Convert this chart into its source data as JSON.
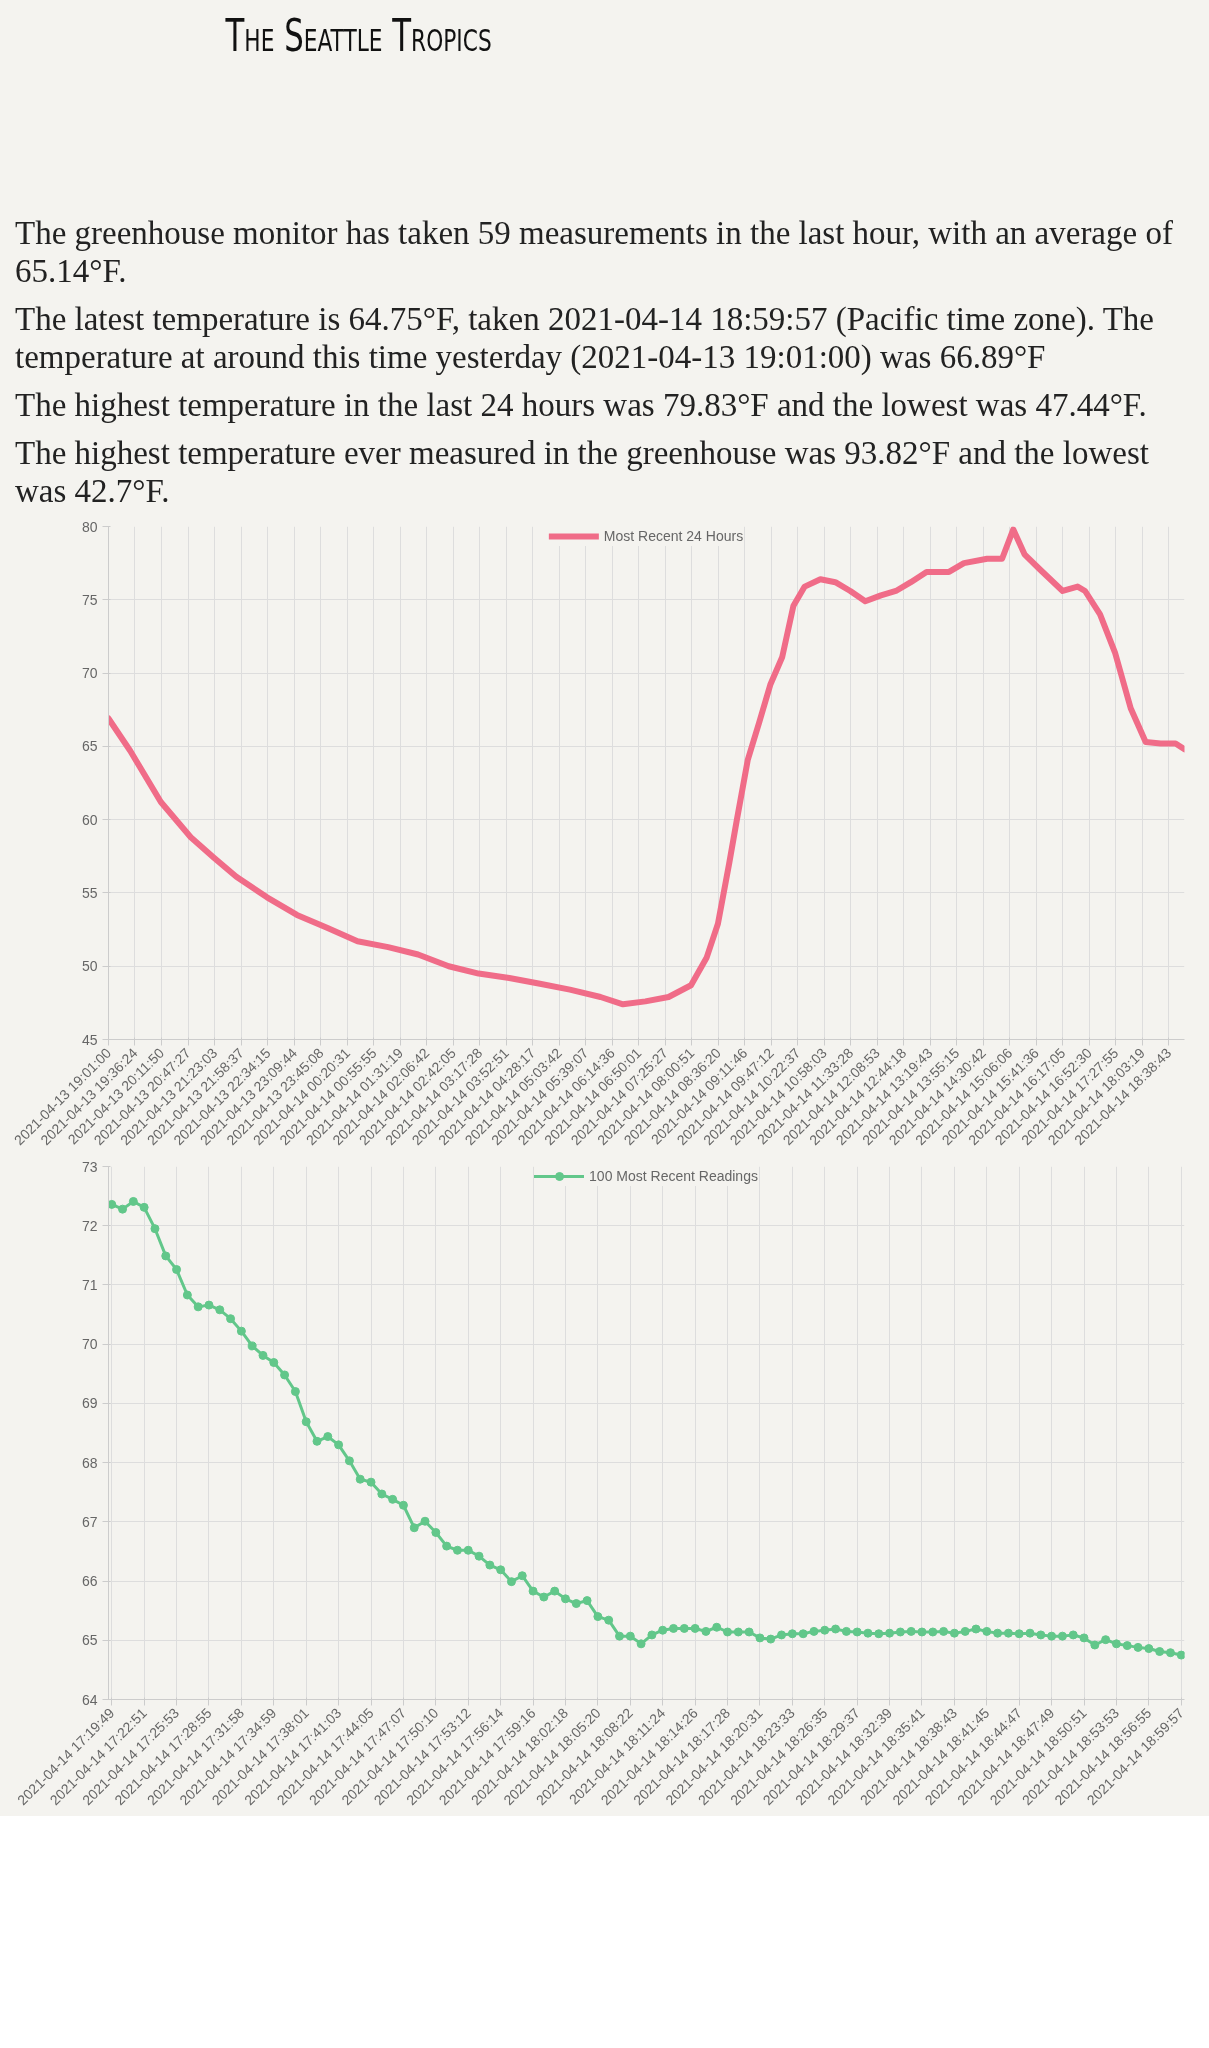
{
  "chart_data": [
    {
      "type": "line",
      "title": "The Seattle Tropics",
      "annotations": [
        "The greenhouse monitor has taken 59 measurements in the last hour, with an average of 65.14°F.",
        "The latest temperature is 64.75°F, taken 2021-04-14 18:59:57 (Pacific time zone). The temperature at around this time yesterday (2021-04-13 19:01:00) was 66.89°F",
        "The highest temperature in the last 24 hours was 79.83°F and the lowest was 47.44°F.",
        "The highest temperature ever measured in the greenhouse was 93.82°F and the lowest was 42.7°F."
      ],
      "x": [
        "2021-04-13T19:01",
        "2021-04-13T19:30",
        "2021-04-13T20:11",
        "2021-04-13T20:51",
        "2021-04-13T21:22",
        "2021-04-13T21:52",
        "2021-04-13T22:33",
        "2021-04-13T23:13",
        "2021-04-13T23:54",
        "2021-04-14T00:34",
        "2021-04-14T01:15",
        "2021-04-14T01:55",
        "2021-04-14T02:36",
        "2021-04-14T03:16",
        "2021-04-14T03:57",
        "2021-04-14T04:38",
        "2021-04-14T05:18",
        "2021-04-14T05:59",
        "2021-04-14T06:29",
        "2021-04-14T06:59",
        "2021-04-14T07:30",
        "2021-04-14T08:00",
        "2021-04-14T08:21",
        "2021-04-14T08:36",
        "2021-04-14T08:51",
        "2021-04-14T09:01",
        "2021-04-14T09:16",
        "2021-04-14T09:31",
        "2021-04-14T09:46",
        "2021-04-14T10:02",
        "2021-04-14T10:17",
        "2021-04-14T10:32",
        "2021-04-14T10:53",
        "2021-04-14T11:13",
        "2021-04-14T11:33",
        "2021-04-14T11:53",
        "2021-04-14T12:14",
        "2021-04-14T12:34",
        "2021-04-14T12:54",
        "2021-04-14T13:15",
        "2021-04-14T13:45",
        "2021-04-14T14:05",
        "2021-04-14T14:36",
        "2021-04-14T14:56",
        "2021-04-14T15:11",
        "2021-04-14T15:26",
        "2021-04-14T15:46",
        "2021-04-14T16:17",
        "2021-04-14T16:37",
        "2021-04-14T16:47",
        "2021-04-14T17:07",
        "2021-04-14T17:27",
        "2021-04-14T17:48",
        "2021-04-14T18:08",
        "2021-04-14T18:28",
        "2021-04-14T18:48",
        "2021-04-14T18:59:57"
      ],
      "series": [
        {
          "name": "Most Recent 24 Hours",
          "color": "#f06c88",
          "values": [
            66.9,
            64.7,
            61.2,
            58.8,
            57.4,
            56.1,
            54.7,
            53.5,
            52.6,
            51.7,
            51.3,
            50.8,
            50.0,
            49.5,
            49.2,
            48.8,
            48.4,
            47.9,
            47.4,
            47.6,
            47.9,
            48.7,
            50.6,
            52.9,
            57.0,
            59.9,
            64.1,
            66.6,
            69.2,
            71.1,
            74.6,
            75.9,
            76.4,
            76.2,
            75.6,
            74.9,
            75.3,
            75.6,
            76.2,
            76.9,
            76.9,
            77.5,
            77.8,
            77.8,
            79.8,
            78.1,
            77.1,
            75.6,
            75.9,
            75.6,
            74.0,
            71.4,
            67.6,
            65.3,
            65.2,
            65.2,
            64.8
          ]
        }
      ],
      "xlim": [
        "2021-04-13T19:01:00",
        "2021-04-14T18:59:57"
      ],
      "xticks": [
        {
          "value": "2021-04-13T19:01:00",
          "label": "2021-04-13 19:01:00"
        },
        {
          "value": "2021-04-13T19:36:24",
          "label": "2021-04-13 19:36:24"
        },
        {
          "value": "2021-04-13T20:11:50",
          "label": "2021-04-13 20:11:50"
        },
        {
          "value": "2021-04-13T20:47:27",
          "label": "2021-04-13 20:47:27"
        },
        {
          "value": "2021-04-13T21:23:03",
          "label": "2021-04-13 21:23:03"
        },
        {
          "value": "2021-04-13T21:58:37",
          "label": "2021-04-13 21:58:37"
        },
        {
          "value": "2021-04-13T22:34:15",
          "label": "2021-04-13 22:34:15"
        },
        {
          "value": "2021-04-13T23:09:44",
          "label": "2021-04-13 23:09:44"
        },
        {
          "value": "2021-04-13T23:45:08",
          "label": "2021-04-13 23:45:08"
        },
        {
          "value": "2021-04-14T00:20:31",
          "label": "2021-04-14 00:20:31"
        },
        {
          "value": "2021-04-14T00:55:55",
          "label": "2021-04-14 00:55:55"
        },
        {
          "value": "2021-04-14T01:31:19",
          "label": "2021-04-14 01:31:19"
        },
        {
          "value": "2021-04-14T02:06:42",
          "label": "2021-04-14 02:06:42"
        },
        {
          "value": "2021-04-14T02:42:05",
          "label": "2021-04-14 02:42:05"
        },
        {
          "value": "2021-04-14T03:17:28",
          "label": "2021-04-14 03:17:28"
        },
        {
          "value": "2021-04-14T03:52:51",
          "label": "2021-04-14 03:52:51"
        },
        {
          "value": "2021-04-14T04:28:17",
          "label": "2021-04-14 04:28:17"
        },
        {
          "value": "2021-04-14T05:03:42",
          "label": "2021-04-14 05:03:42"
        },
        {
          "value": "2021-04-14T05:39:07",
          "label": "2021-04-14 05:39:07"
        },
        {
          "value": "2021-04-14T06:14:36",
          "label": "2021-04-14 06:14:36"
        },
        {
          "value": "2021-04-14T06:50:01",
          "label": "2021-04-14 06:50:01"
        },
        {
          "value": "2021-04-14T07:25:27",
          "label": "2021-04-14 07:25:27"
        },
        {
          "value": "2021-04-14T08:00:51",
          "label": "2021-04-14 08:00:51"
        },
        {
          "value": "2021-04-14T08:36:20",
          "label": "2021-04-14 08:36:20"
        },
        {
          "value": "2021-04-14T09:11:46",
          "label": "2021-04-14 09:11:46"
        },
        {
          "value": "2021-04-14T09:47:12",
          "label": "2021-04-14 09:47:12"
        },
        {
          "value": "2021-04-14T10:22:37",
          "label": "2021-04-14 10:22:37"
        },
        {
          "value": "2021-04-14T10:58:03",
          "label": "2021-04-14 10:58:03"
        },
        {
          "value": "2021-04-14T11:33:28",
          "label": "2021-04-14 11:33:28"
        },
        {
          "value": "2021-04-14T12:08:53",
          "label": "2021-04-14 12:08:53"
        },
        {
          "value": "2021-04-14T12:44:18",
          "label": "2021-04-14 12:44:18"
        },
        {
          "value": "2021-04-14T13:19:43",
          "label": "2021-04-14 13:19:43"
        },
        {
          "value": "2021-04-14T13:55:15",
          "label": "2021-04-14 13:55:15"
        },
        {
          "value": "2021-04-14T14:30:42",
          "label": "2021-04-14 14:30:42"
        },
        {
          "value": "2021-04-14T15:06:06",
          "label": "2021-04-14 15:06:06"
        },
        {
          "value": "2021-04-14T15:41:36",
          "label": "2021-04-14 15:41:36"
        },
        {
          "value": "2021-04-14T16:17:05",
          "label": "2021-04-14 16:17:05"
        },
        {
          "value": "2021-04-14T16:52:30",
          "label": "2021-04-14 16:52:30"
        },
        {
          "value": "2021-04-14T17:27:55",
          "label": "2021-04-14 17:27:55"
        },
        {
          "value": "2021-04-14T18:03:19",
          "label": "2021-04-14 18:03:19"
        },
        {
          "value": "2021-04-14T18:38:43",
          "label": "2021-04-14 18:38:43"
        }
      ],
      "ylim": [
        45,
        80
      ],
      "yticks": [
        45,
        50,
        55,
        60,
        65,
        70,
        75,
        80
      ],
      "grid": true,
      "legend": "top"
    },
    {
      "type": "line",
      "categories": [
        "2021-04-14 17:19:49",
        null,
        null,
        "2021-04-14 17:22:51",
        null,
        null,
        "2021-04-14 17:25:53",
        null,
        null,
        "2021-04-14 17:28:55",
        null,
        null,
        "2021-04-14 17:31:58",
        null,
        null,
        "2021-04-14 17:34:59",
        null,
        null,
        "2021-04-14 17:38:01",
        null,
        null,
        "2021-04-14 17:41:03",
        null,
        null,
        "2021-04-14 17:44:05",
        null,
        null,
        "2021-04-14 17:47:07",
        null,
        null,
        "2021-04-14 17:50:10",
        null,
        null,
        "2021-04-14 17:53:12",
        null,
        null,
        "2021-04-14 17:56:14",
        null,
        null,
        "2021-04-14 17:59:16",
        null,
        null,
        "2021-04-14 18:02:18",
        null,
        null,
        "2021-04-14 18:05:20",
        null,
        null,
        "2021-04-14 18:08:22",
        null,
        null,
        "2021-04-14 18:11:24",
        null,
        null,
        "2021-04-14 18:14:26",
        null,
        null,
        "2021-04-14 18:17:28",
        null,
        null,
        "2021-04-14 18:20:31",
        null,
        null,
        "2021-04-14 18:23:33",
        null,
        null,
        "2021-04-14 18:26:35",
        null,
        null,
        "2021-04-14 18:29:37",
        null,
        null,
        "2021-04-14 18:32:39",
        null,
        null,
        "2021-04-14 18:35:41",
        null,
        null,
        "2021-04-14 18:38:43",
        null,
        null,
        "2021-04-14 18:41:45",
        null,
        null,
        "2021-04-14 18:44:47",
        null,
        null,
        "2021-04-14 18:47:49",
        null,
        null,
        "2021-04-14 18:50:51",
        null,
        null,
        "2021-04-14 18:53:53",
        null,
        null,
        "2021-04-14 18:56:55",
        null,
        null,
        "2021-04-14 18:59:57"
      ],
      "series": [
        {
          "name": "100 Most Recent Readings",
          "color": "#62c78a",
          "values": [
            72.36,
            72.28,
            72.41,
            72.31,
            71.95,
            71.49,
            71.26,
            70.83,
            70.63,
            70.66,
            70.58,
            70.43,
            70.22,
            69.97,
            69.81,
            69.69,
            69.48,
            69.2,
            68.69,
            68.36,
            68.44,
            68.3,
            68.03,
            67.72,
            67.67,
            67.47,
            67.38,
            67.28,
            66.9,
            67.01,
            66.82,
            66.59,
            66.52,
            66.52,
            66.42,
            66.27,
            66.19,
            65.99,
            66.09,
            65.83,
            65.73,
            65.83,
            65.7,
            65.62,
            65.67,
            65.4,
            65.34,
            65.07,
            65.07,
            64.94,
            65.09,
            65.17,
            65.2,
            65.2,
            65.2,
            65.15,
            65.22,
            65.14,
            65.14,
            65.14,
            65.04,
            65.02,
            65.09,
            65.11,
            65.11,
            65.15,
            65.17,
            65.19,
            65.15,
            65.14,
            65.12,
            65.11,
            65.12,
            65.14,
            65.15,
            65.14,
            65.14,
            65.15,
            65.12,
            65.15,
            65.19,
            65.15,
            65.12,
            65.12,
            65.11,
            65.12,
            65.09,
            65.07,
            65.07,
            65.09,
            65.04,
            64.92,
            65.01,
            64.94,
            64.91,
            64.88,
            64.86,
            64.81,
            64.79,
            64.75
          ]
        }
      ],
      "ylim": [
        64,
        73
      ],
      "yticks": [
        64,
        65,
        66,
        67,
        68,
        69,
        70,
        71,
        72,
        73
      ],
      "grid": true,
      "legend": "top",
      "marker": "circle"
    }
  ]
}
